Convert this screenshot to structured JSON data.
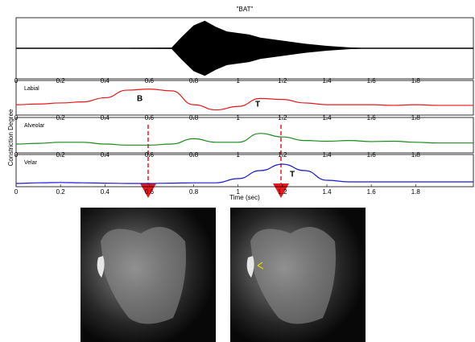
{
  "chart_data": [
    {
      "type": "waveform",
      "title": "\"BAT\"",
      "color": "#000000",
      "x": [
        0,
        0.7,
        0.75,
        0.8,
        0.85,
        0.9,
        0.95,
        1.0,
        1.05,
        1.1,
        1.15,
        1.2,
        1.3,
        1.4,
        1.5,
        1.6,
        2.06
      ],
      "values": [
        0,
        0.02,
        0.4,
        0.75,
        0.9,
        0.7,
        0.55,
        0.5,
        0.45,
        0.35,
        0.3,
        0.25,
        0.15,
        0.08,
        0.03,
        0,
        0
      ],
      "xlim": [
        0,
        2.06
      ],
      "ylim": [
        -1,
        1
      ]
    },
    {
      "type": "line",
      "label": "Labial",
      "color": "#e8191b",
      "annotations": [
        "B",
        "T"
      ],
      "x": [
        0,
        0.1,
        0.2,
        0.3,
        0.4,
        0.5,
        0.6,
        0.7,
        0.8,
        0.9,
        1.0,
        1.1,
        1.2,
        1.3,
        1.4,
        1.5,
        1.6,
        1.7,
        1.8,
        1.9,
        2.06
      ],
      "values": [
        0.3,
        0.32,
        0.35,
        0.38,
        0.5,
        0.72,
        0.75,
        0.7,
        0.3,
        0.15,
        0.25,
        0.48,
        0.45,
        0.35,
        0.3,
        0.3,
        0.3,
        0.28,
        0.3,
        0.28,
        0.28
      ],
      "xlim": [
        0,
        2.06
      ],
      "ylim": [
        0,
        1
      ],
      "xticks": [
        0,
        0.2,
        0.4,
        0.6,
        0.8,
        1,
        1.2,
        1.4,
        1.6,
        1.8
      ]
    },
    {
      "type": "line",
      "label": "Alveolar",
      "color": "#1a8a1a",
      "ylabel": "Constriction Degree",
      "x": [
        0,
        0.1,
        0.2,
        0.3,
        0.4,
        0.5,
        0.6,
        0.7,
        0.8,
        0.9,
        1.0,
        1.1,
        1.2,
        1.3,
        1.4,
        1.5,
        1.6,
        1.7,
        1.8,
        1.9,
        2.06
      ],
      "values": [
        0.25,
        0.27,
        0.3,
        0.3,
        0.25,
        0.22,
        0.22,
        0.25,
        0.4,
        0.3,
        0.3,
        0.55,
        0.45,
        0.35,
        0.33,
        0.35,
        0.32,
        0.33,
        0.3,
        0.28,
        0.28
      ],
      "xlim": [
        0,
        2.06
      ],
      "ylim": [
        0,
        1
      ],
      "xticks": [
        0,
        0.2,
        0.4,
        0.6,
        0.8,
        1,
        1.2,
        1.4,
        1.6,
        1.8
      ]
    },
    {
      "type": "line",
      "label": "Velar",
      "color": "#1a1ad0",
      "annotations": [
        "T"
      ],
      "xlabel": "Time (sec)",
      "x": [
        0,
        0.1,
        0.2,
        0.3,
        0.4,
        0.5,
        0.6,
        0.7,
        0.8,
        0.9,
        1.0,
        1.1,
        1.2,
        1.3,
        1.4,
        1.5,
        1.6,
        1.7,
        1.8,
        1.9,
        2.06
      ],
      "values": [
        0.1,
        0.12,
        0.13,
        0.12,
        0.11,
        0.1,
        0.1,
        0.11,
        0.12,
        0.12,
        0.25,
        0.5,
        0.7,
        0.5,
        0.2,
        0.15,
        0.15,
        0.15,
        0.15,
        0.15,
        0.15
      ],
      "xlim": [
        0,
        2.06
      ],
      "ylim": [
        0,
        1
      ],
      "xticks": [
        0,
        0.2,
        0.4,
        0.6,
        0.8,
        1,
        1.2,
        1.4,
        1.6,
        1.8
      ]
    }
  ]
}
